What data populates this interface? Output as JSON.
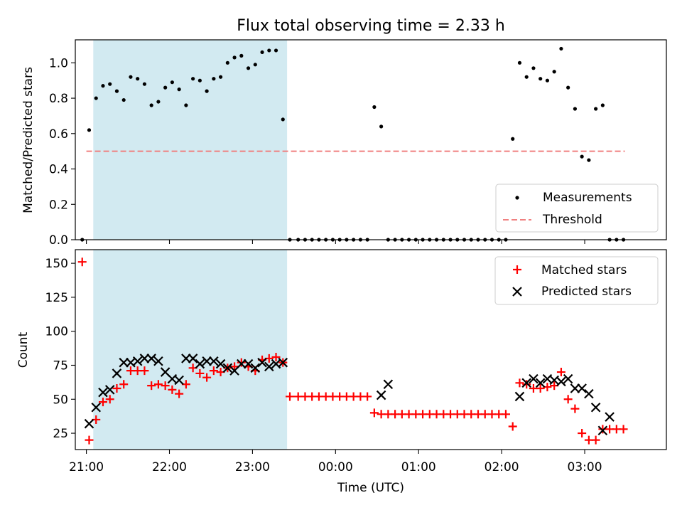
{
  "figure": {
    "title": "Flux total observing time = 2.33 h",
    "xlabel": "Time (UTC)",
    "time_ticks": [
      "21:00",
      "22:00",
      "23:00",
      "00:00",
      "01:00",
      "02:00",
      "03:00"
    ]
  },
  "colors": {
    "measurement": "#000000",
    "threshold": "#f08080",
    "matched": "#ff0000",
    "predicted": "#000000",
    "observing_span": "#add8e6"
  },
  "chart_data": [
    {
      "type": "scatter",
      "ylabel": "Matched/Predicted stars",
      "ylim": [
        0,
        1.13
      ],
      "yticks": [
        "0.0",
        "0.2",
        "0.4",
        "0.6",
        "0.8",
        "1.0"
      ],
      "xlim": [
        "20:52",
        "03:59"
      ],
      "legend_position": "bottom-right",
      "grid": false,
      "observing_span": [
        "21:05",
        "23:25"
      ],
      "threshold": {
        "name": "Threshold",
        "value": 0.5,
        "x": [
          "21:00",
          "03:29"
        ]
      },
      "series": [
        {
          "name": "Measurements",
          "x": [
            "20:57",
            "21:02",
            "21:07",
            "21:12",
            "21:17",
            "21:22",
            "21:27",
            "21:32",
            "21:37",
            "21:42",
            "21:47",
            "21:52",
            "21:57",
            "22:02",
            "22:07",
            "22:12",
            "22:17",
            "22:22",
            "22:27",
            "22:32",
            "22:37",
            "22:42",
            "22:47",
            "22:52",
            "22:57",
            "23:02",
            "23:07",
            "23:12",
            "23:17",
            "23:22",
            "23:27",
            "23:33",
            "23:38",
            "23:43",
            "23:48",
            "23:53",
            "23:58",
            "00:03",
            "00:08",
            "00:13",
            "00:18",
            "00:23",
            "00:28",
            "00:33",
            "00:38",
            "00:43",
            "00:48",
            "00:53",
            "00:58",
            "01:03",
            "01:08",
            "01:13",
            "01:18",
            "01:23",
            "01:28",
            "01:33",
            "01:38",
            "01:43",
            "01:48",
            "01:53",
            "01:58",
            "02:03",
            "02:08",
            "02:13",
            "02:18",
            "02:23",
            "02:28",
            "02:33",
            "02:38",
            "02:43",
            "02:48",
            "02:53",
            "02:58",
            "03:03",
            "03:08",
            "03:13",
            "03:18",
            "03:23",
            "03:28"
          ],
          "y": [
            0.0,
            0.62,
            0.8,
            0.87,
            0.88,
            0.84,
            0.79,
            0.92,
            0.91,
            0.88,
            0.76,
            0.78,
            0.86,
            0.89,
            0.85,
            0.76,
            0.91,
            0.9,
            0.84,
            0.91,
            0.92,
            1.0,
            1.03,
            1.04,
            0.97,
            0.99,
            1.06,
            1.07,
            1.07,
            0.68,
            0.0,
            0.0,
            0.0,
            0.0,
            0.0,
            0.0,
            0.0,
            0.0,
            0.0,
            0.0,
            0.0,
            0.0,
            0.75,
            0.64,
            0.0,
            0.0,
            0.0,
            0.0,
            0.0,
            0.0,
            0.0,
            0.0,
            0.0,
            0.0,
            0.0,
            0.0,
            0.0,
            0.0,
            0.0,
            0.0,
            0.0,
            0.0,
            0.57,
            1.0,
            0.92,
            0.97,
            0.91,
            0.9,
            0.95,
            1.08,
            0.86,
            0.74,
            0.47,
            0.45,
            0.74,
            0.76,
            0.0,
            0.0,
            0.0
          ]
        }
      ]
    },
    {
      "type": "scatter",
      "ylabel": "Count",
      "ylim": [
        13,
        160
      ],
      "yticks": [
        "25",
        "50",
        "75",
        "100",
        "125",
        "150"
      ],
      "xlim": [
        "20:52",
        "03:59"
      ],
      "legend_position": "top-right",
      "grid": false,
      "observing_span": [
        "21:05",
        "23:25"
      ],
      "series": [
        {
          "name": "Matched stars",
          "x": [
            "20:57",
            "21:02",
            "21:07",
            "21:12",
            "21:17",
            "21:22",
            "21:27",
            "21:32",
            "21:37",
            "21:42",
            "21:47",
            "21:52",
            "21:57",
            "22:02",
            "22:07",
            "22:12",
            "22:17",
            "22:22",
            "22:27",
            "22:32",
            "22:37",
            "22:42",
            "22:47",
            "22:52",
            "22:57",
            "23:02",
            "23:07",
            "23:12",
            "23:17",
            "23:22",
            "23:27",
            "23:33",
            "23:38",
            "23:43",
            "23:48",
            "23:53",
            "23:58",
            "00:03",
            "00:08",
            "00:13",
            "00:18",
            "00:23",
            "00:28",
            "00:33",
            "00:38",
            "00:43",
            "00:48",
            "00:53",
            "00:58",
            "01:03",
            "01:08",
            "01:13",
            "01:18",
            "01:23",
            "01:28",
            "01:33",
            "01:38",
            "01:43",
            "01:48",
            "01:53",
            "01:58",
            "02:03",
            "02:08",
            "02:13",
            "02:18",
            "02:23",
            "02:28",
            "02:33",
            "02:38",
            "02:43",
            "02:48",
            "02:53",
            "02:58",
            "03:03",
            "03:08",
            "03:13",
            "03:18",
            "03:23",
            "03:28"
          ],
          "y": [
            151,
            20,
            35,
            48,
            50,
            58,
            61,
            71,
            71,
            71,
            60,
            61,
            60,
            57,
            54,
            61,
            73,
            69,
            66,
            71,
            70,
            73,
            74,
            77,
            74,
            71,
            79,
            80,
            81,
            77,
            52,
            52,
            52,
            52,
            52,
            52,
            52,
            52,
            52,
            52,
            52,
            52,
            40,
            39,
            39,
            39,
            39,
            39,
            39,
            39,
            39,
            39,
            39,
            39,
            39,
            39,
            39,
            39,
            39,
            39,
            39,
            39,
            30,
            62,
            61,
            58,
            58,
            59,
            60,
            70,
            50,
            43,
            25,
            20,
            20,
            28,
            28,
            28,
            28
          ]
        },
        {
          "name": "Predicted stars",
          "x": [
            "21:02",
            "21:07",
            "21:12",
            "21:17",
            "21:22",
            "21:27",
            "21:32",
            "21:37",
            "21:42",
            "21:47",
            "21:52",
            "21:57",
            "22:02",
            "22:07",
            "22:12",
            "22:17",
            "22:22",
            "22:27",
            "22:32",
            "22:37",
            "22:42",
            "22:47",
            "22:52",
            "22:57",
            "23:02",
            "23:07",
            "23:12",
            "23:17",
            "23:22",
            "00:33",
            "00:38",
            "02:13",
            "02:18",
            "02:23",
            "02:28",
            "02:33",
            "02:38",
            "02:43",
            "02:48",
            "02:53",
            "02:58",
            "03:03",
            "03:08",
            "03:13",
            "03:18"
          ],
          "y": [
            32,
            44,
            55,
            57,
            69,
            77,
            77,
            78,
            80,
            80,
            78,
            70,
            65,
            64,
            80,
            80,
            76,
            78,
            78,
            76,
            73,
            71,
            76,
            76,
            73,
            77,
            74,
            76,
            77,
            53,
            61,
            52,
            62,
            65,
            62,
            65,
            64,
            63,
            65,
            58,
            58,
            54,
            44,
            27,
            37
          ]
        }
      ]
    }
  ]
}
